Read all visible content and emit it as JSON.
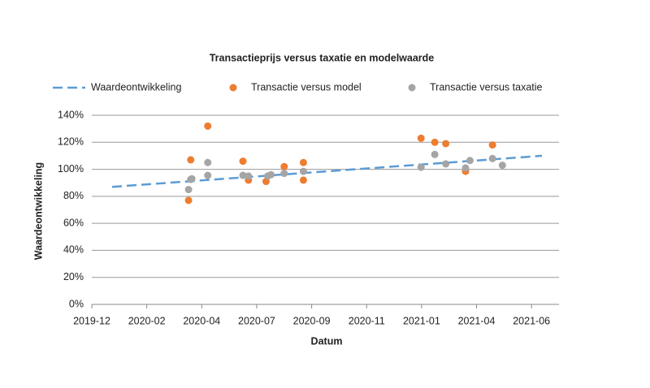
{
  "chart_data": {
    "type": "scatter",
    "title": "Transactieprijs versus taxatie en modelwaarde",
    "x_label": "Datum",
    "y_label": "Waardeontwikkeling",
    "xlim": [
      0,
      8.5
    ],
    "xticks": [
      {
        "value": 0,
        "label": "2019-12"
      },
      {
        "value": 1,
        "label": "2020-02"
      },
      {
        "value": 2,
        "label": "2020-04"
      },
      {
        "value": 3,
        "label": "2020-07"
      },
      {
        "value": 4,
        "label": "2020-09"
      },
      {
        "value": 5,
        "label": "2020-11"
      },
      {
        "value": 6,
        "label": "2021-01"
      },
      {
        "value": 7,
        "label": "2021-04"
      },
      {
        "value": 8,
        "label": "2021-06"
      }
    ],
    "ylim": [
      0,
      140
    ],
    "yticks": [
      {
        "value": 0,
        "label": "0%"
      },
      {
        "value": 20,
        "label": "20%"
      },
      {
        "value": 40,
        "label": "40%"
      },
      {
        "value": 60,
        "label": "60%"
      },
      {
        "value": 80,
        "label": "80%"
      },
      {
        "value": 100,
        "label": "100%"
      },
      {
        "value": 120,
        "label": "120%"
      },
      {
        "value": 140,
        "label": "140%"
      }
    ],
    "grid": true,
    "series": [
      {
        "name": "Waardeontwikkeling",
        "kind": "dashed-line",
        "color": "#5b9bd5",
        "x": [
          0.37,
          8.19
        ],
        "values": [
          87,
          110
        ]
      },
      {
        "name": "Transactie versus model",
        "kind": "points",
        "color": "#ed7d31",
        "x": [
          1.76,
          1.8,
          2.11,
          2.75,
          2.85,
          3.17,
          3.5,
          3.85,
          3.85,
          5.99,
          6.24,
          6.44,
          6.8,
          7.29
        ],
        "values": [
          77,
          107,
          132,
          106,
          92,
          91,
          102,
          105,
          92,
          123,
          120,
          119,
          98.5,
          118
        ]
      },
      {
        "name": "Transactie versus taxatie",
        "kind": "points",
        "color": "#a5a5a5",
        "x": [
          1.76,
          1.8,
          1.82,
          2.11,
          2.11,
          2.75,
          2.85,
          3.2,
          3.26,
          3.5,
          3.85,
          5.99,
          6.24,
          6.44,
          6.8,
          6.88,
          7.29,
          7.47
        ],
        "values": [
          85,
          92.5,
          93,
          105,
          95.5,
          95.5,
          95,
          95,
          96,
          97,
          98.5,
          101.5,
          111,
          104,
          101,
          106.5,
          108,
          103
        ]
      }
    ]
  }
}
